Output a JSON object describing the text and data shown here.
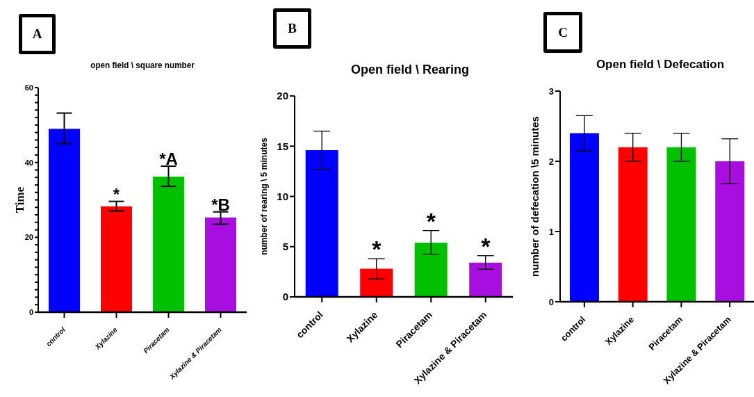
{
  "chart_data": [
    {
      "type": "bar",
      "title": "open field \\ square number",
      "ylabel": "Time",
      "categories": [
        "control",
        "Xylazine",
        "Piracetam",
        "Xylazine & Piracetam"
      ],
      "values": [
        49,
        28.3,
        36.2,
        25.3
      ],
      "colors": [
        "#0000ff",
        "#ff0000",
        "#00c000",
        "#a80ee0"
      ],
      "errors": [
        [
          45,
          53.2
        ],
        [
          27,
          29.6
        ],
        [
          33.6,
          39
        ],
        [
          23.5,
          26.8
        ]
      ],
      "ylim": [
        0,
        60
      ],
      "yticks": [
        0,
        {
          "value": 2,
          "label": null
        },
        {
          "value": 4,
          "label": null
        },
        {
          "value": 6,
          "label": null
        },
        {
          "value": 8,
          "label": null
        },
        {
          "value": 10,
          "label": null
        },
        {
          "value": 12,
          "label": null
        },
        {
          "value": 14,
          "label": null
        },
        {
          "value": 16,
          "label": null
        },
        {
          "value": 18,
          "label": null
        },
        20,
        {
          "value": 22,
          "label": null
        },
        {
          "value": 24,
          "label": null
        },
        {
          "value": 26,
          "label": null
        },
        {
          "value": 28,
          "label": null
        },
        {
          "value": 30,
          "label": null
        },
        {
          "value": 32,
          "label": null
        },
        {
          "value": 34,
          "label": null
        },
        {
          "value": 36,
          "label": null
        },
        {
          "value": 38,
          "label": null
        },
        40,
        {
          "value": 42,
          "label": null
        },
        {
          "value": 44,
          "label": null
        },
        {
          "value": 46,
          "label": null
        },
        {
          "value": 48,
          "label": null
        },
        {
          "value": 50,
          "label": null
        },
        {
          "value": 52,
          "label": null
        },
        {
          "value": 54,
          "label": null
        },
        {
          "value": 56,
          "label": null
        },
        {
          "value": 58,
          "label": null
        },
        60
      ],
      "grid": false,
      "legend": false,
      "annotations": [
        "A",
        {
          "text": "*",
          "x": "Xylazine",
          "y": 29.6
        },
        {
          "text": "*A",
          "x": "Piracetam",
          "y": 39
        },
        {
          "text": "*B",
          "x": "Xylazine & Piracetam",
          "y": 26.8
        }
      ]
    },
    {
      "type": "bar",
      "title": "Open field \\ Rearing",
      "ylabel": "number of rearing \\ 5 minutes",
      "categories": [
        "control",
        "Xylazine",
        "Piracetam",
        "Xylazine & Piracetam"
      ],
      "values": [
        14.6,
        2.8,
        5.4,
        3.4
      ],
      "colors": [
        "#0000ff",
        "#ff0000",
        "#00c000",
        "#a80ee0"
      ],
      "errors": [
        [
          12.7,
          16.5
        ],
        [
          1.8,
          3.8
        ],
        [
          4.25,
          6.6
        ],
        [
          2.75,
          4.1
        ]
      ],
      "ylim": [
        0,
        20
      ],
      "yticks": [
        0,
        5,
        10,
        15,
        20
      ],
      "grid": false,
      "legend": false,
      "annotations": [
        "B",
        {
          "text": "*",
          "x": "Xylazine",
          "y": 3.8
        },
        {
          "text": "*",
          "x": "Piracetam",
          "y": 6.6
        },
        {
          "text": "*",
          "x": "Xylazine & Piracetam",
          "y": 4.1
        }
      ]
    },
    {
      "type": "bar",
      "title": "Open field \\ Defecation",
      "ylabel": "number of defecation \\5 minutes",
      "categories": [
        "control",
        "Xylazine",
        "Piracetam",
        "Xylazine & Piracetam"
      ],
      "values": [
        2.4,
        2.2,
        2.2,
        2.0
      ],
      "colors": [
        "#0000ff",
        "#ff0000",
        "#00c000",
        "#a80ee0"
      ],
      "errors": [
        [
          2.15,
          2.65
        ],
        [
          2.0,
          2.4
        ],
        [
          2.0,
          2.4
        ],
        [
          1.68,
          2.32
        ]
      ],
      "ylim": [
        0,
        3
      ],
      "yticks": [
        0,
        1,
        2,
        3
      ],
      "grid": false,
      "legend": false,
      "annotations": [
        "C"
      ]
    }
  ]
}
